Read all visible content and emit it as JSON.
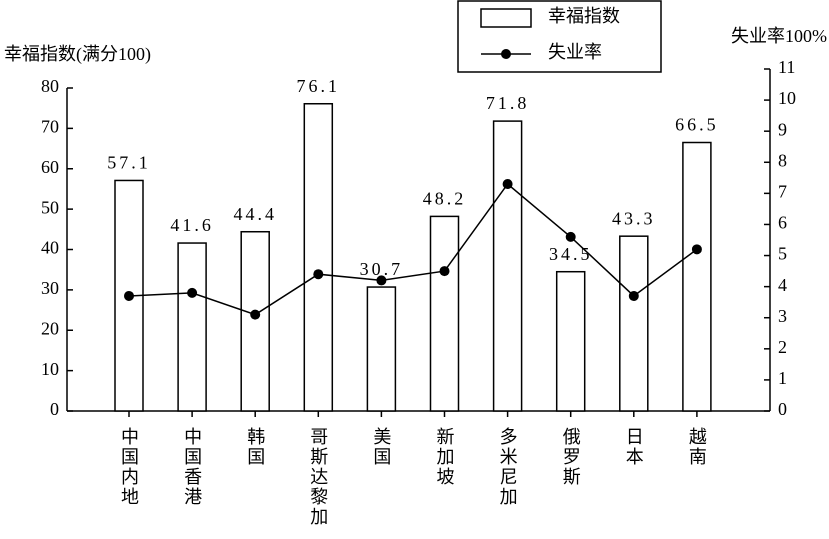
{
  "chart_data": {
    "type": "bar-line",
    "y_title": "幸福指数(满分100)",
    "y2_title": "失业率100%",
    "categories": [
      "中国内地",
      "中国香港",
      "韩国",
      "哥斯达黎加",
      "美国",
      "新加坡",
      "多米尼加",
      "俄罗斯",
      "日本",
      "越南"
    ],
    "series": [
      {
        "name": "幸福指数",
        "type": "bar",
        "color": "#ffffff",
        "values": [
          57.1,
          41.6,
          44.4,
          76.1,
          30.7,
          48.2,
          71.8,
          34.5,
          43.3,
          66.5
        ]
      },
      {
        "name": "失业率",
        "type": "line",
        "axis": "y2",
        "color": "#000000",
        "values": [
          3.7,
          3.8,
          3.1,
          4.4,
          4.2,
          4.5,
          7.3,
          5.6,
          3.7,
          5.2
        ]
      }
    ],
    "ylim": [
      0,
      80
    ],
    "yticks": [
      0,
      10,
      20,
      30,
      40,
      50,
      60,
      70,
      80
    ],
    "y2lim": [
      0,
      11
    ],
    "y2ticks": [
      0,
      1,
      2,
      3,
      4,
      5,
      6,
      7,
      8,
      9,
      10,
      11
    ]
  }
}
